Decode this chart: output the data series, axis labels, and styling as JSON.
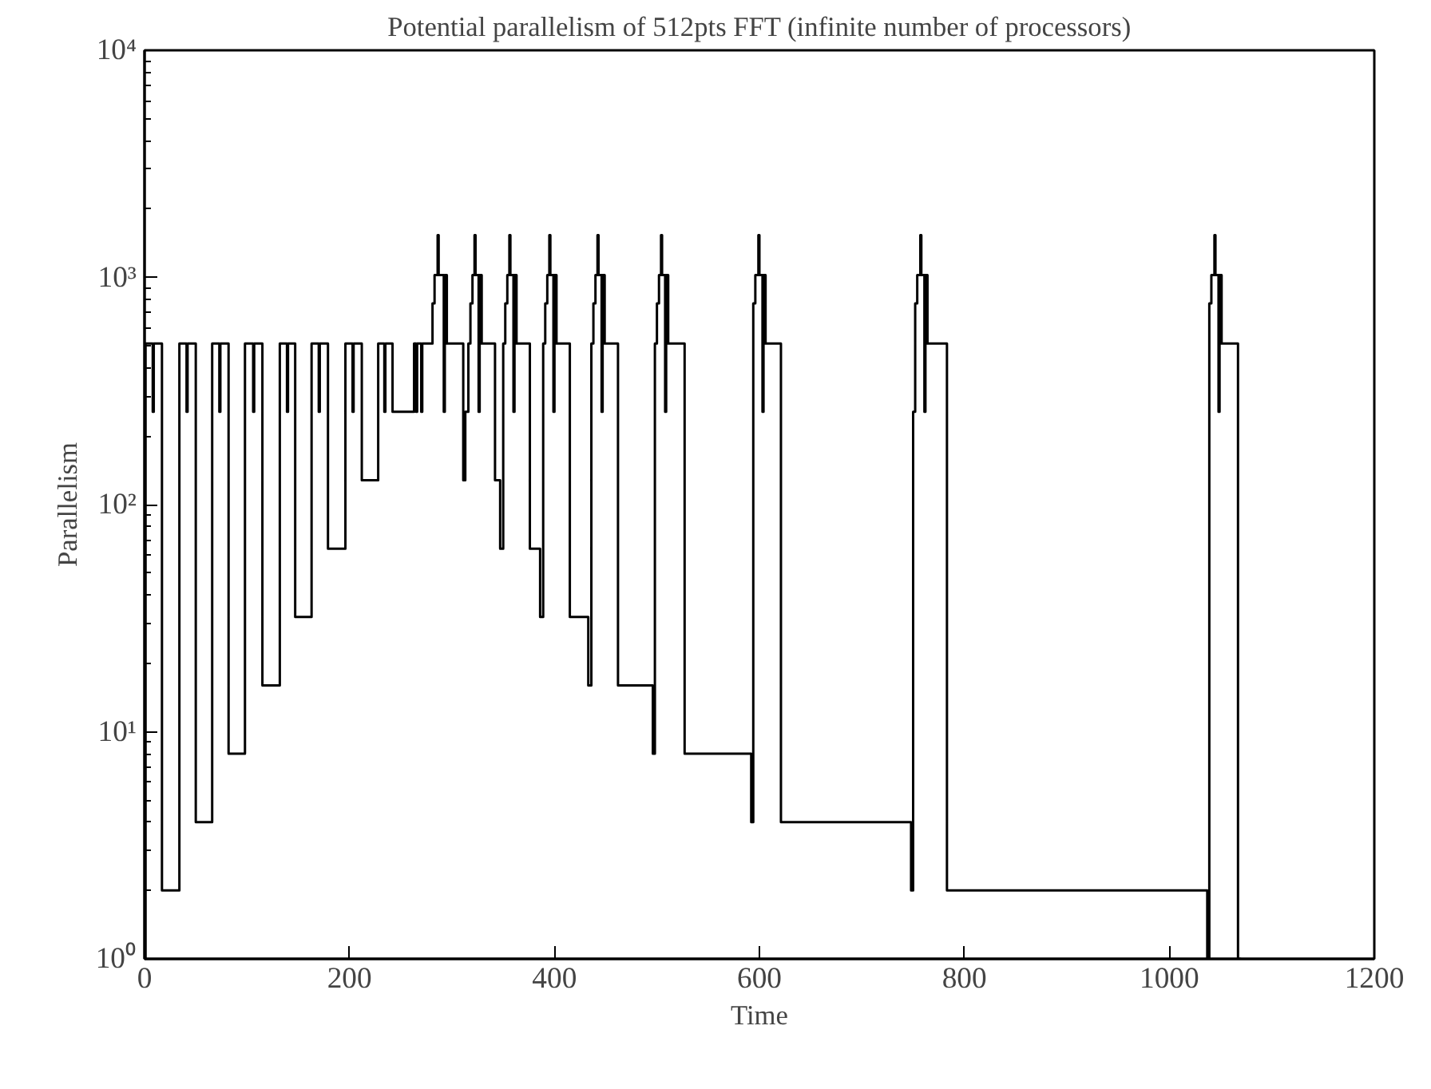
{
  "chart_data": {
    "type": "step",
    "title": "Potential parallelism of 512pts FFT (infinite number of processors)",
    "xlabel": "Time",
    "ylabel": "Parallelism",
    "log": "y",
    "grid": false,
    "line_style": "solid",
    "marker": "none",
    "xlim": [
      0,
      1200
    ],
    "xticks": [
      0,
      200,
      400,
      600,
      800,
      1000,
      1200
    ],
    "ylim": [
      1,
      10000
    ],
    "yticks": [
      {
        "value": 1,
        "label": "10⁰"
      },
      {
        "value": 10,
        "label": "10¹"
      },
      {
        "value": 100,
        "label": "10²"
      },
      {
        "value": 1000,
        "label": "10³"
      },
      {
        "value": 10000,
        "label": "10⁴"
      }
    ],
    "series": [
      {
        "color": "#000000",
        "x": [
          0,
          1,
          8,
          9,
          17,
          34,
          41,
          42,
          50,
          66,
          73,
          74,
          82,
          98,
          106,
          107,
          115,
          132,
          139,
          140,
          147,
          163,
          170,
          171,
          179,
          196,
          203,
          204,
          212,
          228,
          234,
          235,
          242,
          263,
          265,
          266,
          270,
          271,
          281,
          283,
          286,
          287,
          292,
          293,
          295,
          311,
          313,
          316,
          318,
          320,
          322,
          323,
          326,
          327,
          329,
          342,
          347,
          350,
          352,
          354,
          356,
          357,
          360,
          361,
          363,
          376,
          386,
          389,
          391,
          393,
          395,
          396,
          399,
          400,
          402,
          415,
          433,
          436,
          438,
          440,
          442,
          443,
          446,
          447,
          449,
          462,
          496,
          498,
          500,
          502,
          504,
          505,
          508,
          509,
          511,
          527,
          592,
          594,
          596,
          599,
          600,
          603,
          604,
          606,
          621,
          748,
          750,
          752,
          754,
          757,
          758,
          761,
          762,
          764,
          783,
          1037,
          1039,
          1041,
          1044,
          1045,
          1048,
          1049,
          1051,
          1067,
          1070
        ],
        "values": [
          1,
          512,
          256,
          512,
          2,
          512,
          256,
          512,
          4,
          512,
          256,
          512,
          8,
          512,
          256,
          512,
          16,
          512,
          256,
          512,
          32,
          512,
          256,
          512,
          64,
          512,
          256,
          512,
          128,
          512,
          256,
          512,
          256,
          512,
          256,
          512,
          256,
          512,
          768,
          1024,
          1536,
          1024,
          256,
          1024,
          512,
          128,
          256,
          512,
          768,
          1024,
          1536,
          1024,
          256,
          1024,
          512,
          128,
          64,
          512,
          768,
          1024,
          1536,
          1024,
          256,
          1024,
          512,
          64,
          32,
          512,
          768,
          1024,
          1536,
          1024,
          256,
          1024,
          512,
          32,
          16,
          512,
          768,
          1024,
          1536,
          1024,
          256,
          1024,
          512,
          16,
          8,
          512,
          768,
          1024,
          1536,
          1024,
          256,
          1024,
          512,
          8,
          4,
          768,
          1024,
          1536,
          1024,
          256,
          1024,
          512,
          4,
          2,
          256,
          768,
          1024,
          1536,
          1024,
          256,
          1024,
          512,
          2,
          1,
          768,
          1024,
          1536,
          1024,
          256,
          1024,
          512,
          1,
          1
        ]
      }
    ]
  }
}
